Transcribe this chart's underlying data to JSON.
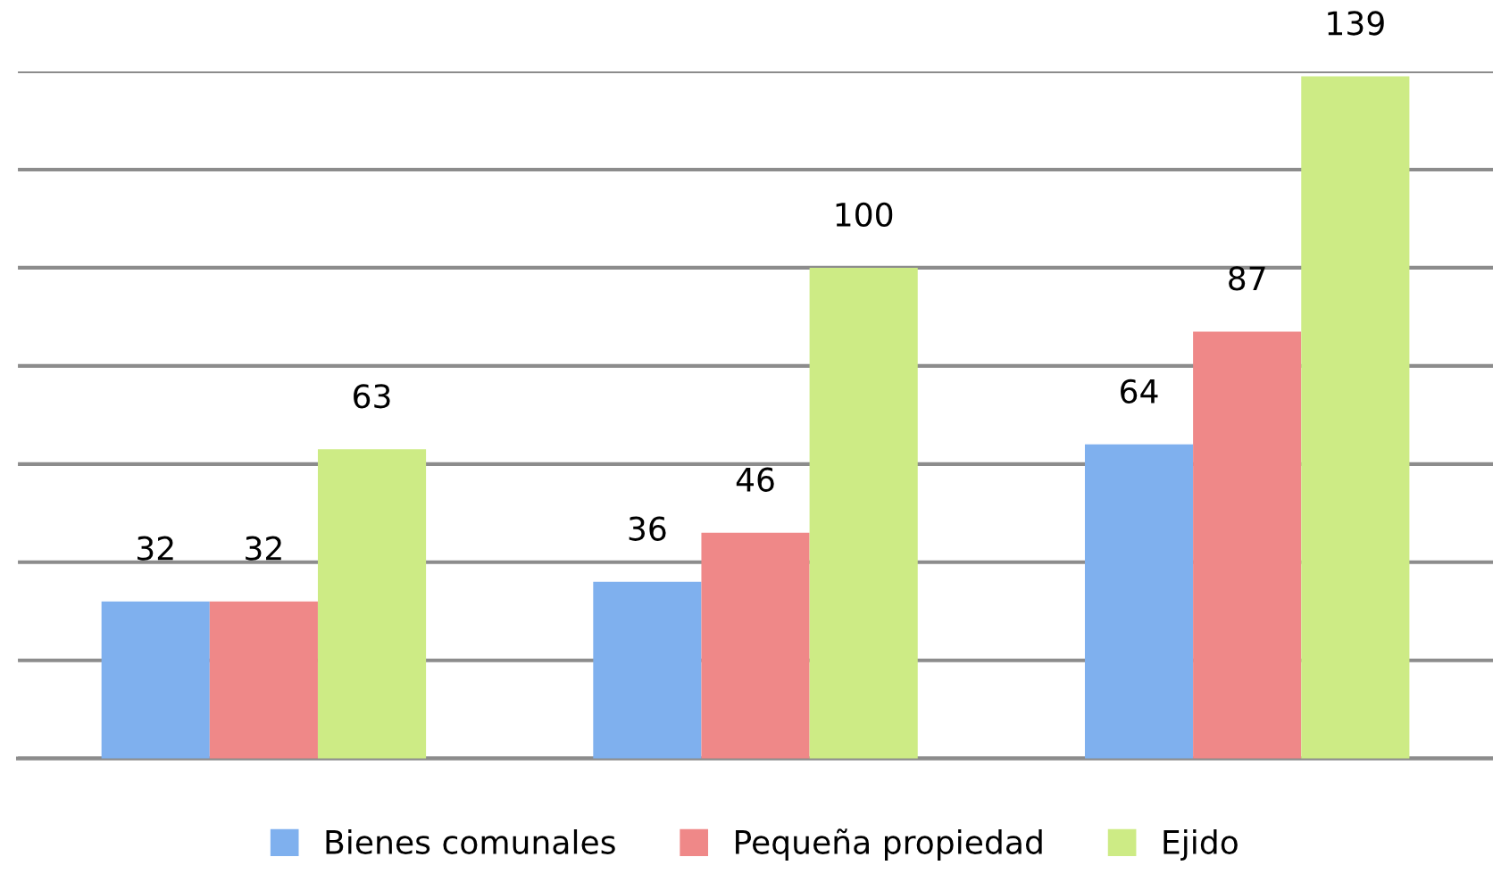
{
  "chart_data": {
    "type": "bar",
    "categories": [
      null,
      null,
      null
    ],
    "series": [
      {
        "name": "Bienes comunales",
        "color": "#7fb0ee",
        "values": [
          32,
          36,
          64
        ]
      },
      {
        "name": "Pequeña propiedad",
        "color": "#ef8888",
        "values": [
          32,
          46,
          87
        ]
      },
      {
        "name": "Ejido",
        "color": "#cdeb85",
        "values": [
          63,
          100,
          139
        ]
      }
    ],
    "ylim": [
      0,
      140
    ],
    "yticks": [
      {
        "value": 0,
        "label": null
      },
      {
        "value": 20,
        "label": null
      },
      {
        "value": 40,
        "label": null
      },
      {
        "value": 60,
        "label": null
      },
      {
        "value": 80,
        "label": null
      },
      {
        "value": 100,
        "label": null
      },
      {
        "value": 120,
        "label": null
      },
      {
        "value": 140,
        "label": null
      }
    ],
    "grid": "y",
    "legend": "bottom",
    "data_labels": true
  }
}
